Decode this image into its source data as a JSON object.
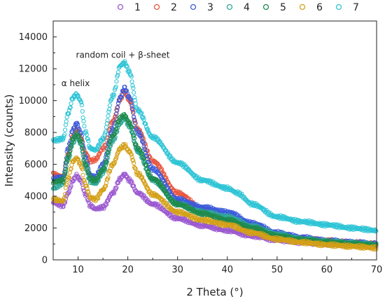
{
  "chart_data": {
    "type": "scatter",
    "xlabel": "2 Theta (°)",
    "ylabel": "Intensity (counts)",
    "xlim": [
      5,
      70
    ],
    "ylim": [
      0,
      15000
    ],
    "x_ticks": [
      10,
      20,
      30,
      40,
      50,
      60,
      70
    ],
    "y_ticks": [
      0,
      2000,
      4000,
      6000,
      8000,
      10000,
      12000,
      14000
    ],
    "x_tick_labels": [
      "10",
      "20",
      "30",
      "40",
      "50",
      "60",
      "70"
    ],
    "y_tick_labels": [
      "0",
      "2000",
      "4000",
      "6000",
      "8000",
      "10000",
      "12000",
      "14000"
    ],
    "grid": false,
    "legend_position": "top",
    "marker": "open-circle",
    "annotations": [
      {
        "text": "α helix",
        "x": 9.5,
        "y": 10900
      },
      {
        "text": "random coil + β-sheet",
        "x": 19,
        "y": 12700
      }
    ],
    "series": [
      {
        "name": "1",
        "color": "#9B59D0",
        "points": [
          [
            5,
            3600
          ],
          [
            7,
            3400
          ],
          [
            8,
            4200
          ],
          [
            9,
            5000
          ],
          [
            9.7,
            5300
          ],
          [
            10.5,
            5000
          ],
          [
            11.5,
            4100
          ],
          [
            12.5,
            3400
          ],
          [
            13.5,
            3200
          ],
          [
            15,
            3300
          ],
          [
            17,
            4200
          ],
          [
            18.5,
            5100
          ],
          [
            19.3,
            5400
          ],
          [
            20.3,
            5000
          ],
          [
            22,
            4200
          ],
          [
            25,
            3500
          ],
          [
            30,
            2600
          ],
          [
            35,
            2150
          ],
          [
            40,
            1850
          ],
          [
            45,
            1500
          ],
          [
            50,
            1250
          ],
          [
            55,
            1100
          ],
          [
            60,
            1000
          ],
          [
            65,
            920
          ],
          [
            70,
            860
          ]
        ]
      },
      {
        "name": "2",
        "color": "#E8573F",
        "points": [
          [
            5,
            5400
          ],
          [
            7,
            5200
          ],
          [
            8,
            6600
          ],
          [
            9,
            7800
          ],
          [
            9.7,
            8200
          ],
          [
            10.5,
            7700
          ],
          [
            11.5,
            6700
          ],
          [
            12.5,
            6200
          ],
          [
            13.5,
            6300
          ],
          [
            15,
            7000
          ],
          [
            17,
            8700
          ],
          [
            18.5,
            10100
          ],
          [
            19.3,
            10600
          ],
          [
            20.3,
            10000
          ],
          [
            22,
            8200
          ],
          [
            25,
            6200
          ],
          [
            30,
            4200
          ],
          [
            35,
            3200
          ],
          [
            40,
            2600
          ],
          [
            45,
            2100
          ],
          [
            50,
            1600
          ],
          [
            55,
            1350
          ],
          [
            60,
            1200
          ],
          [
            65,
            1080
          ],
          [
            70,
            980
          ]
        ]
      },
      {
        "name": "3",
        "color": "#3B5BDB",
        "points": [
          [
            5,
            5100
          ],
          [
            7,
            5200
          ],
          [
            8,
            7000
          ],
          [
            9,
            8200
          ],
          [
            9.7,
            8600
          ],
          [
            10.5,
            8000
          ],
          [
            11.5,
            6400
          ],
          [
            12.5,
            5300
          ],
          [
            13.5,
            5200
          ],
          [
            15,
            6000
          ],
          [
            17,
            8200
          ],
          [
            18.5,
            10200
          ],
          [
            19.3,
            10800
          ],
          [
            20.3,
            10200
          ],
          [
            22,
            8000
          ],
          [
            25,
            5700
          ],
          [
            30,
            3800
          ],
          [
            35,
            3300
          ],
          [
            40,
            3000
          ],
          [
            45,
            2300
          ],
          [
            50,
            1700
          ],
          [
            55,
            1400
          ],
          [
            60,
            1200
          ],
          [
            65,
            1100
          ],
          [
            70,
            1000
          ]
        ]
      },
      {
        "name": "4",
        "color": "#2EA89A",
        "points": [
          [
            5,
            4500
          ],
          [
            7,
            4800
          ],
          [
            8,
            6300
          ],
          [
            9,
            7400
          ],
          [
            9.7,
            7800
          ],
          [
            10.5,
            7300
          ],
          [
            11.5,
            5800
          ],
          [
            12.5,
            4900
          ],
          [
            13.5,
            4800
          ],
          [
            15,
            5500
          ],
          [
            17,
            7500
          ],
          [
            18.5,
            8600
          ],
          [
            19.3,
            8900
          ],
          [
            20.3,
            8400
          ],
          [
            22,
            6800
          ],
          [
            25,
            5000
          ],
          [
            30,
            3500
          ],
          [
            35,
            3000
          ],
          [
            40,
            2700
          ],
          [
            45,
            2100
          ],
          [
            50,
            1600
          ],
          [
            55,
            1300
          ],
          [
            60,
            1150
          ],
          [
            65,
            1050
          ],
          [
            70,
            950
          ]
        ]
      },
      {
        "name": "5",
        "color": "#1F8A4C",
        "points": [
          [
            5,
            4900
          ],
          [
            7,
            5000
          ],
          [
            8,
            6500
          ],
          [
            9,
            7600
          ],
          [
            9.7,
            7900
          ],
          [
            10.5,
            7500
          ],
          [
            11.5,
            6000
          ],
          [
            12.5,
            5100
          ],
          [
            13.5,
            5000
          ],
          [
            15,
            5700
          ],
          [
            17,
            7800
          ],
          [
            18.5,
            8900
          ],
          [
            19.3,
            9100
          ],
          [
            20.3,
            8600
          ],
          [
            22,
            7000
          ],
          [
            25,
            5100
          ],
          [
            30,
            3500
          ],
          [
            35,
            2900
          ],
          [
            40,
            2500
          ],
          [
            45,
            2000
          ],
          [
            50,
            1500
          ],
          [
            55,
            1250
          ],
          [
            60,
            1100
          ],
          [
            65,
            1000
          ],
          [
            70,
            900
          ]
        ]
      },
      {
        "name": "6",
        "color": "#D4A017",
        "points": [
          [
            5,
            3800
          ],
          [
            7,
            3700
          ],
          [
            8,
            5100
          ],
          [
            9,
            6200
          ],
          [
            9.7,
            6400
          ],
          [
            10.5,
            6000
          ],
          [
            11.5,
            4700
          ],
          [
            12.5,
            3900
          ],
          [
            13.5,
            3800
          ],
          [
            15,
            4400
          ],
          [
            17,
            6000
          ],
          [
            18.5,
            7000
          ],
          [
            19.3,
            7200
          ],
          [
            20.3,
            6800
          ],
          [
            22,
            5400
          ],
          [
            25,
            4100
          ],
          [
            30,
            3000
          ],
          [
            35,
            2500
          ],
          [
            40,
            2200
          ],
          [
            45,
            1700
          ],
          [
            50,
            1300
          ],
          [
            55,
            1100
          ],
          [
            60,
            950
          ],
          [
            65,
            850
          ],
          [
            70,
            750
          ]
        ]
      },
      {
        "name": "7",
        "color": "#2EC4D6",
        "points": [
          [
            5,
            7500
          ],
          [
            7,
            7600
          ],
          [
            8,
            9200
          ],
          [
            9,
            10200
          ],
          [
            9.7,
            10400
          ],
          [
            10.5,
            10000
          ],
          [
            11.5,
            8000
          ],
          [
            12.5,
            7000
          ],
          [
            13.5,
            6900
          ],
          [
            15,
            7600
          ],
          [
            17,
            10300
          ],
          [
            18.5,
            12200
          ],
          [
            19.3,
            12400
          ],
          [
            20.3,
            11800
          ],
          [
            22,
            9400
          ],
          [
            25,
            7700
          ],
          [
            30,
            6100
          ],
          [
            35,
            5000
          ],
          [
            40,
            4500
          ],
          [
            42,
            4200
          ],
          [
            45,
            3500
          ],
          [
            50,
            2700
          ],
          [
            55,
            2400
          ],
          [
            60,
            2200
          ],
          [
            65,
            2000
          ],
          [
            70,
            1850
          ]
        ]
      }
    ]
  }
}
